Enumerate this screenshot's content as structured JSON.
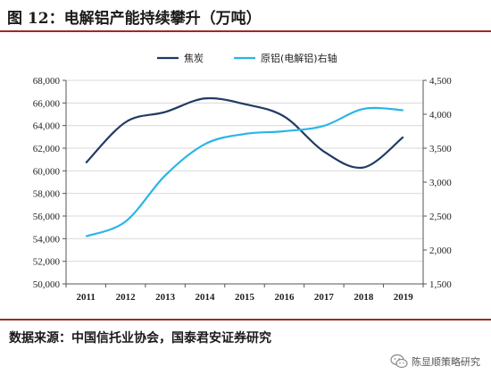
{
  "header": {
    "title": "图 12：电解铝产能持续攀升（万吨）"
  },
  "footer": {
    "source": "数据来源：中国信托业协会，国泰君安证券研究",
    "watermark": "陈显顺策略研究",
    "watermark_icon": "wechat-icon"
  },
  "colors": {
    "coke": "#1f3b63",
    "aluminum": "#29b6e6",
    "rule": "#9c2a26"
  },
  "chart_data": {
    "type": "line",
    "title": "",
    "categories": [
      "2011",
      "2012",
      "2013",
      "2014",
      "2015",
      "2016",
      "2017",
      "2018",
      "2019"
    ],
    "series": [
      {
        "name": "焦炭",
        "axis": "left",
        "values": [
          60700,
          64300,
          65200,
          66400,
          65900,
          64800,
          61700,
          60300,
          63000
        ]
      },
      {
        "name": "原铝(电解铝)右轴",
        "axis": "right",
        "values": [
          2200,
          2420,
          3100,
          3560,
          3710,
          3750,
          3830,
          4080,
          4060
        ]
      }
    ],
    "y_left": {
      "min": 50000,
      "max": 68000,
      "ticks": [
        "50,000",
        "52,000",
        "54,000",
        "56,000",
        "58,000",
        "60,000",
        "62,000",
        "64,000",
        "66,000",
        "68,000"
      ]
    },
    "y_right": {
      "min": 1500,
      "max": 4500,
      "ticks": [
        "1,500",
        "2,000",
        "2,500",
        "3,000",
        "3,500",
        "4,000",
        "4,500"
      ]
    },
    "grid": true,
    "legend_position": "top-center"
  }
}
